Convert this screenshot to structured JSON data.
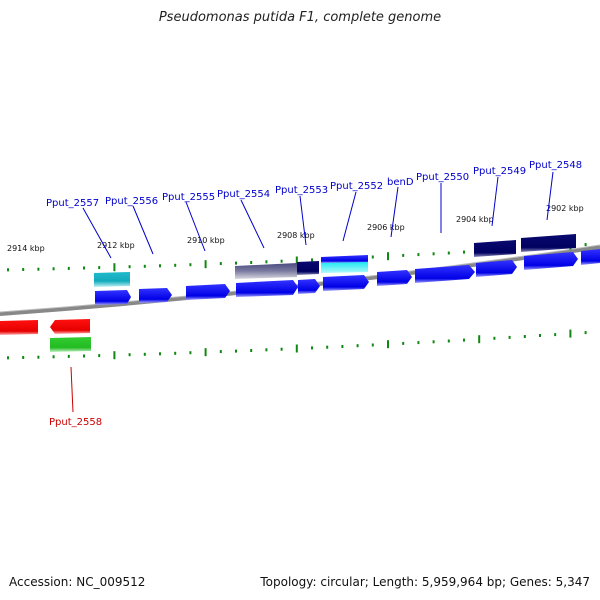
{
  "title": "Pseudomonas putida F1, complete genome",
  "footer": {
    "accession": "Accession: NC_009512",
    "summary": "Topology: circular; Length: 5,959,964 bp; Genes: 5,347"
  },
  "colors": {
    "gene_label_forward": "#0000cc",
    "gene_label_reverse": "#cc0000",
    "tick": "#118811",
    "backbone": "#888888"
  },
  "kbp_labels": [
    "2914 kbp",
    "2912 kbp",
    "2910 kbp",
    "2908 kbp",
    "2906 kbp",
    "2904 kbp",
    "2902 kbp"
  ],
  "gene_labels": [
    "Pput_2557",
    "Pput_2556",
    "Pput_2555",
    "Pput_2554",
    "Pput_2553",
    "Pput_2552",
    "benD",
    "Pput_2550",
    "Pput_2549",
    "Pput_2548",
    "Pput_2558"
  ]
}
